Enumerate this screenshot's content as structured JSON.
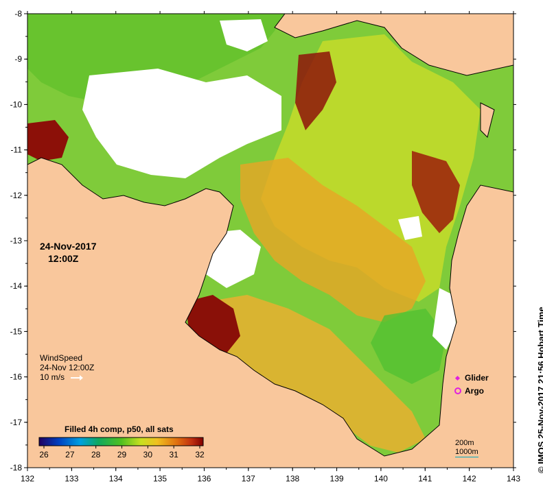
{
  "map": {
    "lon_ticks": [
      "132",
      "133",
      "134",
      "135",
      "136",
      "137",
      "138",
      "139",
      "140",
      "141",
      "142",
      "143"
    ],
    "lat_ticks": [
      "-8",
      "-9",
      "-10",
      "-11",
      "-12",
      "-13",
      "-14",
      "-15",
      "-16",
      "-17",
      "-18"
    ],
    "colors": {
      "land": "#f9c79c",
      "nodata": "#ffffff",
      "coast": "#000000"
    }
  },
  "date": {
    "day": "24-Nov-2017",
    "time": "12:00Z"
  },
  "wind": {
    "title": "WindSpeed",
    "when": "24-Nov 12:00Z",
    "scale": "10 m/s"
  },
  "point_legend": {
    "glider": "Glider",
    "argo": "Argo"
  },
  "depth_legend": {
    "contour1": "200m",
    "contour2": "1000m"
  },
  "colorbar": {
    "title": "Filled 4h comp, p50, all sats",
    "ticks": [
      "26",
      "27",
      "28",
      "29",
      "30",
      "31",
      "32"
    ],
    "colors": [
      "#2a0070",
      "#0040c0",
      "#00a0e0",
      "#10b070",
      "#40c020",
      "#a0d820",
      "#e8e820",
      "#f0b020",
      "#e07010",
      "#c03010",
      "#800000"
    ]
  },
  "credit": "© IMOS 25-Nov-2017 21:56 Hobart Time"
}
